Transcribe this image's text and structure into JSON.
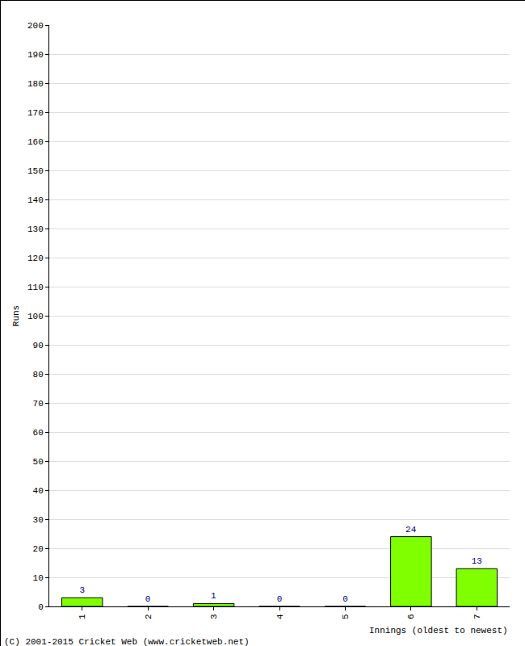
{
  "chart_data": {
    "type": "bar",
    "categories": [
      "1",
      "2",
      "3",
      "4",
      "5",
      "6",
      "7"
    ],
    "values": [
      3,
      0,
      1,
      0,
      0,
      24,
      13
    ],
    "color": "#80ff00",
    "x_label": "Innings (oldest to newest)",
    "y_label": "Runs",
    "annotations": [
      "(C) 2001-2015 Cricket Web (www.cricketweb.net)"
    ],
    "ylim": [
      0,
      200
    ],
    "yticks": [
      0,
      10,
      20,
      30,
      40,
      50,
      60,
      70,
      80,
      90,
      100,
      110,
      120,
      130,
      140,
      150,
      160,
      170,
      180,
      190,
      200
    ],
    "grid": true,
    "data_labels": true
  }
}
